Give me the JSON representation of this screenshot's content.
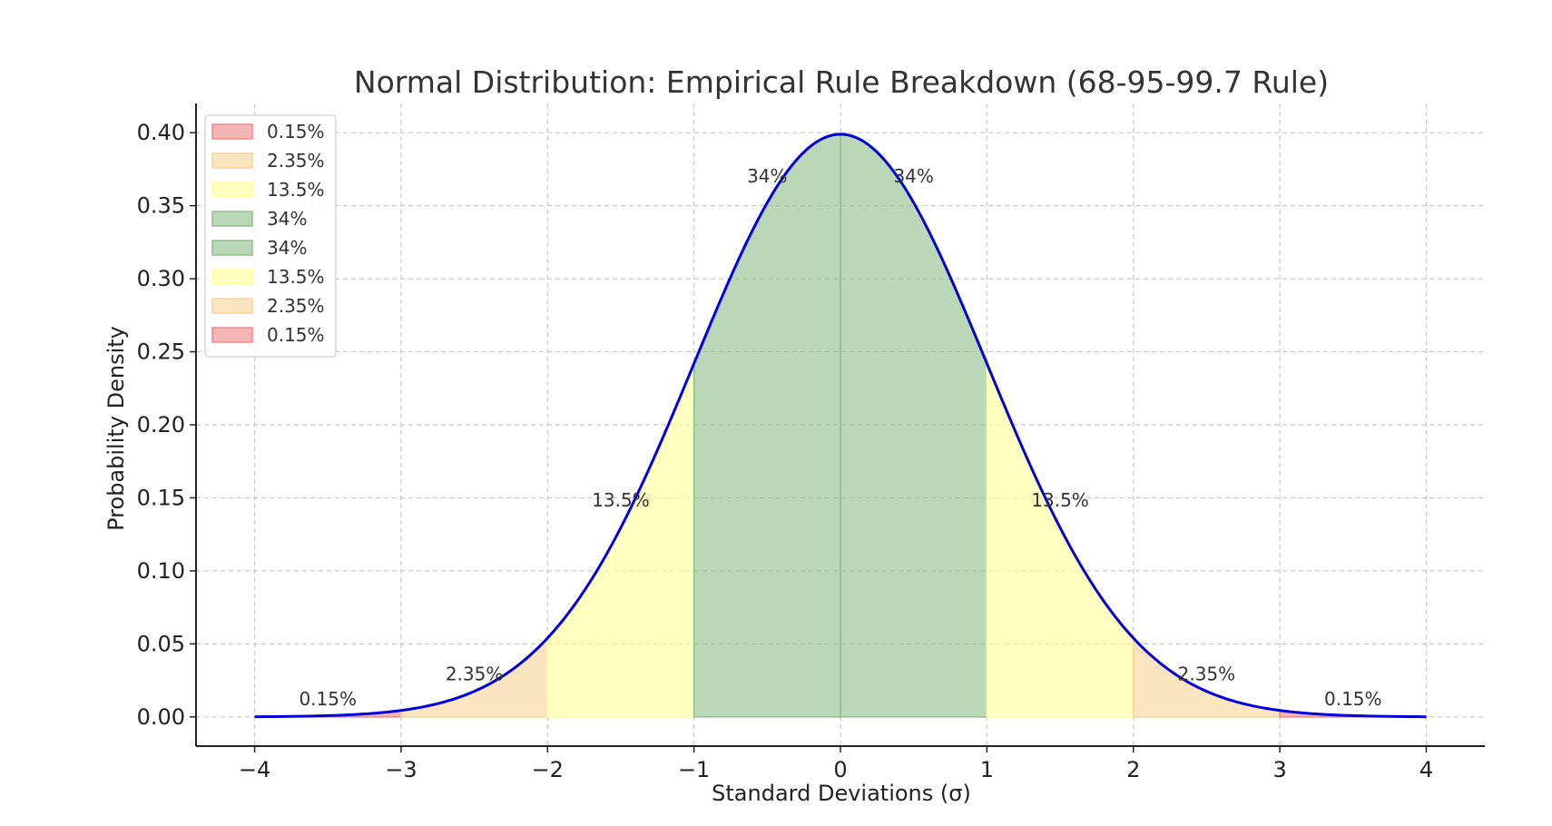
{
  "chart_data": {
    "type": "area",
    "title": "Normal Distribution: Empirical Rule Breakdown (68-95-99.7 Rule)",
    "xlabel": "Standard Deviations (σ)",
    "ylabel": "Probability Density",
    "xlim": [
      -4.4,
      4.4
    ],
    "ylim": [
      -0.02,
      0.42
    ],
    "x_ticks": [
      -4,
      -3,
      -2,
      -1,
      0,
      1,
      2,
      3,
      4
    ],
    "x_tick_labels": [
      "−4",
      "−3",
      "−2",
      "−1",
      "0",
      "1",
      "2",
      "3",
      "4"
    ],
    "y_ticks": [
      0.0,
      0.05,
      0.1,
      0.15,
      0.2,
      0.25,
      0.3,
      0.35,
      0.4
    ],
    "y_tick_labels": [
      "0.00",
      "0.05",
      "0.10",
      "0.15",
      "0.20",
      "0.25",
      "0.30",
      "0.35",
      "0.40"
    ],
    "grid": true,
    "legend_position": "top-left",
    "curve": {
      "mean": 0,
      "sd": 1,
      "x_range": [
        -4,
        4
      ],
      "color": "#0000dd"
    },
    "regions": [
      {
        "label": "0.15%",
        "x0": -4,
        "x1": -3,
        "color": "#ee8888",
        "label_at": [
          -3.5,
          0.008
        ]
      },
      {
        "label": "2.35%",
        "x0": -3,
        "x1": -2,
        "color": "#f8d49a",
        "label_at": [
          -2.5,
          0.025
        ]
      },
      {
        "label": "13.5%",
        "x0": -2,
        "x1": -1,
        "color": "#ffff99",
        "label_at": [
          -1.5,
          0.144
        ]
      },
      {
        "label": "34%",
        "x0": -1,
        "x1": 0,
        "color": "#8fc08a",
        "label_at": [
          -0.5,
          0.366
        ]
      },
      {
        "label": "34%",
        "x0": 0,
        "x1": 1,
        "color": "#8fc08a",
        "label_at": [
          0.5,
          0.366
        ]
      },
      {
        "label": "13.5%",
        "x0": 1,
        "x1": 2,
        "color": "#ffff99",
        "label_at": [
          1.5,
          0.144
        ]
      },
      {
        "label": "2.35%",
        "x0": 2,
        "x1": 3,
        "color": "#f8d49a",
        "label_at": [
          2.5,
          0.025
        ]
      },
      {
        "label": "0.15%",
        "x0": 3,
        "x1": 4,
        "color": "#ee8888",
        "label_at": [
          3.5,
          0.008
        ]
      }
    ]
  }
}
